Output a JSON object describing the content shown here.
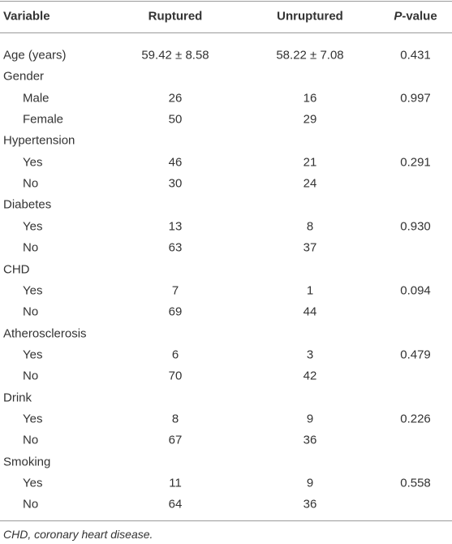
{
  "table": {
    "header": [
      "Variable",
      "Ruptured",
      "Unruptured",
      "P-value"
    ],
    "age": {
      "label": "Age (years)",
      "ruptured": "59.42 ± 8.58",
      "unruptured": "58.22 ± 7.08",
      "p": "0.431"
    },
    "groups": [
      {
        "label": "Gender",
        "p": "0.997",
        "items": [
          {
            "label": "Male",
            "ruptured": "26",
            "unruptured": "16"
          },
          {
            "label": "Female",
            "ruptured": "50",
            "unruptured": "29"
          }
        ]
      },
      {
        "label": "Hypertension",
        "p": "0.291",
        "items": [
          {
            "label": "Yes",
            "ruptured": "46",
            "unruptured": "21"
          },
          {
            "label": "No",
            "ruptured": "30",
            "unruptured": "24"
          }
        ]
      },
      {
        "label": "Diabetes",
        "p": "0.930",
        "items": [
          {
            "label": "Yes",
            "ruptured": "13",
            "unruptured": "8"
          },
          {
            "label": "No",
            "ruptured": "63",
            "unruptured": "37"
          }
        ]
      },
      {
        "label": "CHD",
        "p": "0.094",
        "items": [
          {
            "label": "Yes",
            "ruptured": "7",
            "unruptured": "1"
          },
          {
            "label": "No",
            "ruptured": "69",
            "unruptured": "44"
          }
        ]
      },
      {
        "label": "Atherosclerosis",
        "p": "0.479",
        "items": [
          {
            "label": "Yes",
            "ruptured": "6",
            "unruptured": "3"
          },
          {
            "label": "No",
            "ruptured": "70",
            "unruptured": "42"
          }
        ]
      },
      {
        "label": "Drink",
        "p": "0.226",
        "items": [
          {
            "label": "Yes",
            "ruptured": "8",
            "unruptured": "9"
          },
          {
            "label": "No",
            "ruptured": "67",
            "unruptured": "36"
          }
        ]
      },
      {
        "label": "Smoking",
        "p": "0.558",
        "items": [
          {
            "label": "Yes",
            "ruptured": "11",
            "unruptured": "9"
          },
          {
            "label": "No",
            "ruptured": "64",
            "unruptured": "36"
          }
        ]
      }
    ],
    "footnote": "CHD, coronary heart disease."
  }
}
